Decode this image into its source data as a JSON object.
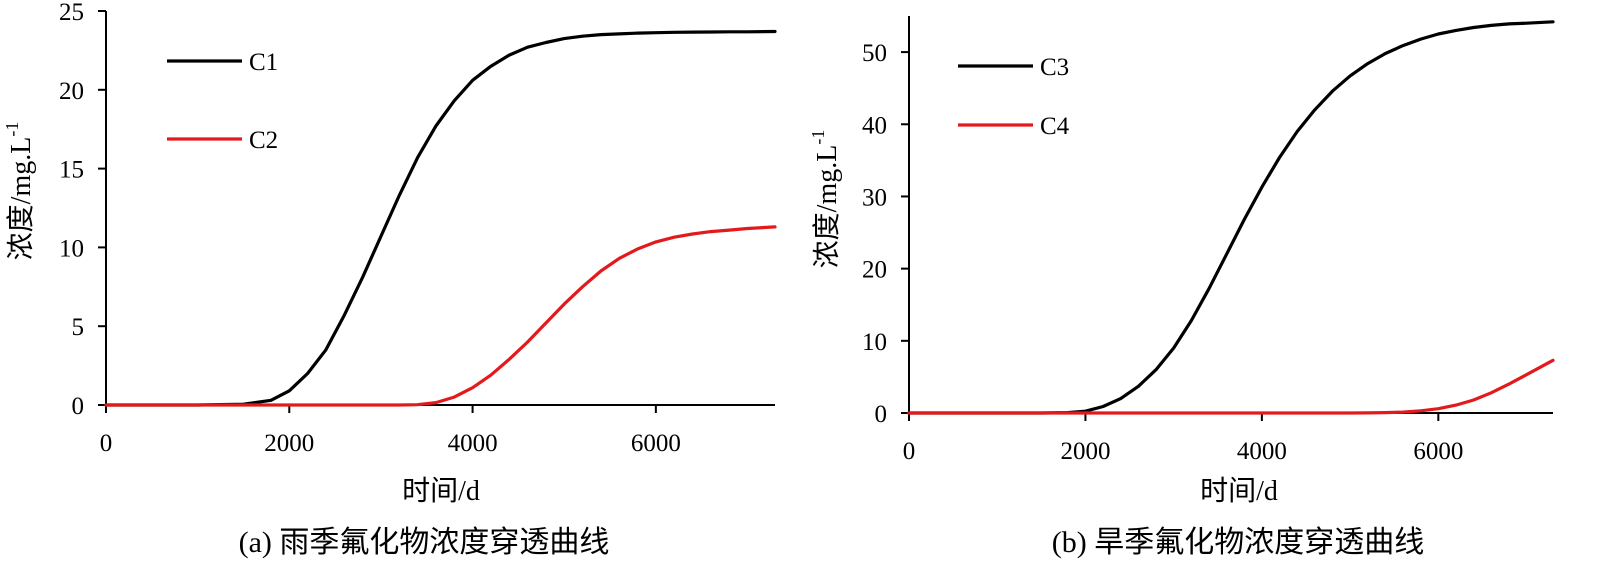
{
  "chart_data": [
    {
      "type": "line",
      "caption": "(a)  雨季氟化物浓度穿透曲线",
      "xlabel": "时间/d",
      "ylabel": "浓度/mg.L",
      "ylabel_sup": "-1",
      "xlim": [
        0,
        7300
      ],
      "ylim": [
        0,
        25
      ],
      "xticks": [
        0,
        2000,
        4000,
        6000
      ],
      "yticks": [
        0,
        5,
        10,
        15,
        20,
        25
      ],
      "legend_position": "top-left",
      "grid": false,
      "x": [
        0,
        500,
        1000,
        1500,
        1800,
        2000,
        2200,
        2400,
        2600,
        2800,
        3000,
        3200,
        3400,
        3600,
        3800,
        4000,
        4200,
        4400,
        4600,
        4800,
        5000,
        5200,
        5400,
        5600,
        5800,
        6000,
        6200,
        6400,
        6600,
        6800,
        7000,
        7300
      ],
      "series": [
        {
          "name": "C1",
          "color": "#000000",
          "values": [
            0,
            0,
            0,
            0.05,
            0.3,
            0.9,
            2.0,
            3.5,
            5.7,
            8.1,
            10.7,
            13.3,
            15.7,
            17.7,
            19.3,
            20.6,
            21.5,
            22.2,
            22.7,
            23.0,
            23.25,
            23.4,
            23.5,
            23.55,
            23.6,
            23.62,
            23.65,
            23.66,
            23.67,
            23.68,
            23.68,
            23.7
          ]
        },
        {
          "name": "C2",
          "color": "#e31a1c",
          "values": [
            0,
            0,
            0,
            0,
            0,
            0,
            0,
            0,
            0,
            0,
            0,
            0,
            0.02,
            0.15,
            0.5,
            1.1,
            1.9,
            2.9,
            4.0,
            5.2,
            6.4,
            7.5,
            8.5,
            9.3,
            9.9,
            10.35,
            10.65,
            10.85,
            11.0,
            11.1,
            11.2,
            11.3
          ]
        }
      ]
    },
    {
      "type": "line",
      "caption": "(b)  旱季氟化物浓度穿透曲线",
      "xlabel": "时间/d",
      "ylabel": "浓度/mg.L",
      "ylabel_sup": "-1",
      "xlim": [
        0,
        7300
      ],
      "ylim": [
        0,
        55
      ],
      "xticks": [
        0,
        2000,
        4000,
        6000
      ],
      "yticks": [
        0,
        10,
        20,
        30,
        40,
        50
      ],
      "legend_position": "top-left",
      "grid": false,
      "x": [
        0,
        500,
        1000,
        1500,
        1800,
        2000,
        2200,
        2400,
        2600,
        2800,
        3000,
        3200,
        3400,
        3600,
        3800,
        4000,
        4200,
        4400,
        4600,
        4800,
        5000,
        5200,
        5400,
        5600,
        5800,
        6000,
        6200,
        6400,
        6600,
        6800,
        7000,
        7300
      ],
      "series": [
        {
          "name": "C3",
          "color": "#000000",
          "values": [
            0,
            0,
            0,
            0,
            0.05,
            0.25,
            0.9,
            2.0,
            3.7,
            6.0,
            9.0,
            12.8,
            17.2,
            22.0,
            26.8,
            31.3,
            35.4,
            39.0,
            42.0,
            44.6,
            46.7,
            48.4,
            49.8,
            50.9,
            51.8,
            52.5,
            53.0,
            53.4,
            53.7,
            53.9,
            54.0,
            54.2
          ]
        },
        {
          "name": "C4",
          "color": "#e31a1c",
          "values": [
            0,
            0,
            0,
            0,
            0,
            0,
            0,
            0,
            0,
            0,
            0,
            0,
            0,
            0,
            0,
            0,
            0,
            0,
            0,
            0,
            0,
            0.02,
            0.05,
            0.12,
            0.3,
            0.6,
            1.1,
            1.8,
            2.8,
            4.0,
            5.3,
            7.3
          ]
        }
      ]
    }
  ]
}
